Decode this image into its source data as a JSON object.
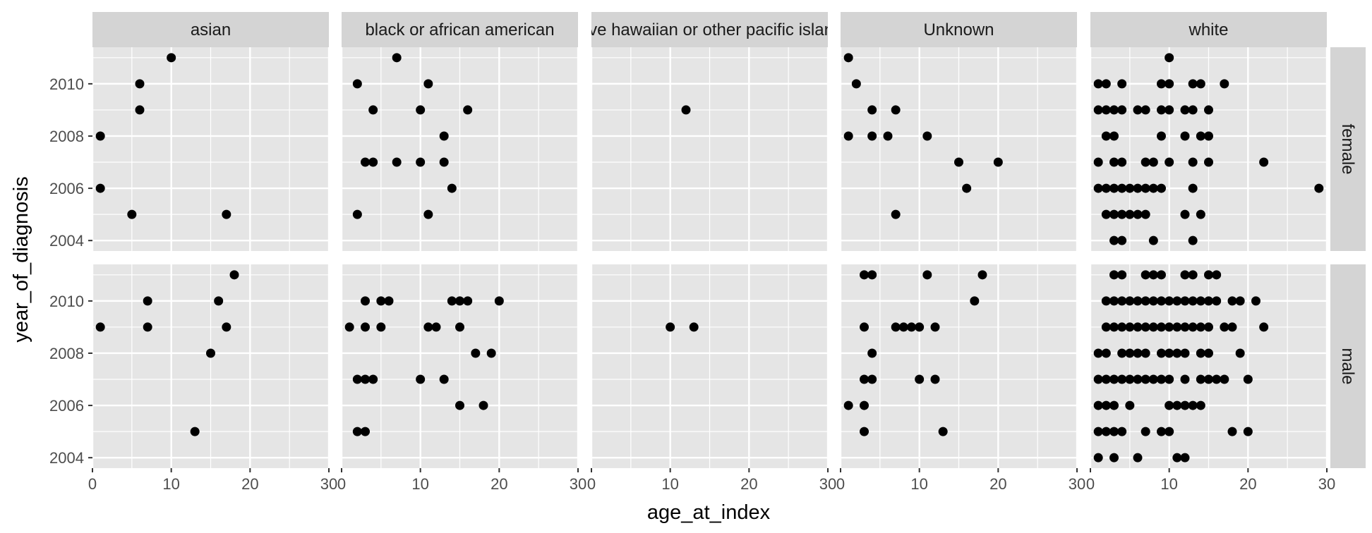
{
  "chart_data": {
    "type": "scatter",
    "xlabel": "age_at_index",
    "ylabel": "year_of_diagnosis",
    "xlim": [
      0,
      30
    ],
    "ylim": [
      2003.6,
      2011.4
    ],
    "x_ticks": [
      0,
      10,
      20,
      30
    ],
    "y_ticks": [
      2004,
      2006,
      2008,
      2010
    ],
    "grid": true,
    "legend": "none",
    "columns": [
      "asian",
      "black or african american",
      "native hawaiian or other pacific islander",
      "Unknown",
      "white"
    ],
    "rows": [
      "female",
      "male"
    ],
    "colors": {
      "panel_bg": "#e5e5e5",
      "strip_bg": "#d4d4d4",
      "grid": "#ffffff",
      "point": "#000000",
      "tick_text": "#4d4d4d"
    },
    "panels": [
      {
        "column": "asian",
        "row": "female",
        "points": [
          [
            1,
            2008
          ],
          [
            1,
            2006
          ],
          [
            5,
            2005
          ],
          [
            6,
            2010
          ],
          [
            6,
            2009
          ],
          [
            10,
            2011
          ],
          [
            17,
            2005
          ]
        ]
      },
      {
        "column": "black or african american",
        "row": "female",
        "points": [
          [
            2,
            2010
          ],
          [
            2,
            2005
          ],
          [
            3,
            2007
          ],
          [
            4,
            2007
          ],
          [
            4,
            2009
          ],
          [
            7,
            2011
          ],
          [
            7,
            2007
          ],
          [
            10,
            2009
          ],
          [
            10,
            2007
          ],
          [
            11,
            2010
          ],
          [
            11,
            2005
          ],
          [
            13,
            2008
          ],
          [
            13,
            2007
          ],
          [
            14,
            2006
          ],
          [
            16,
            2009
          ]
        ]
      },
      {
        "column": "native hawaiian or other pacific islander",
        "row": "female",
        "points": [
          [
            12,
            2009
          ]
        ]
      },
      {
        "column": "Unknown",
        "row": "female",
        "points": [
          [
            1,
            2011
          ],
          [
            1,
            2008
          ],
          [
            2,
            2010
          ],
          [
            4,
            2009
          ],
          [
            4,
            2008
          ],
          [
            6,
            2008
          ],
          [
            7,
            2009
          ],
          [
            7,
            2005
          ],
          [
            11,
            2008
          ],
          [
            15,
            2007
          ],
          [
            16,
            2006
          ],
          [
            20,
            2007
          ]
        ]
      },
      {
        "column": "white",
        "row": "female",
        "points": [
          [
            1,
            2010
          ],
          [
            2,
            2010
          ],
          [
            4,
            2010
          ],
          [
            9,
            2010
          ],
          [
            10,
            2010
          ],
          [
            13,
            2010
          ],
          [
            14,
            2010
          ],
          [
            17,
            2010
          ],
          [
            10,
            2011
          ],
          [
            1,
            2009
          ],
          [
            2,
            2009
          ],
          [
            3,
            2009
          ],
          [
            4,
            2009
          ],
          [
            6,
            2009
          ],
          [
            7,
            2009
          ],
          [
            9,
            2009
          ],
          [
            10,
            2009
          ],
          [
            12,
            2009
          ],
          [
            13,
            2009
          ],
          [
            15,
            2009
          ],
          [
            2,
            2008
          ],
          [
            3,
            2008
          ],
          [
            9,
            2008
          ],
          [
            12,
            2008
          ],
          [
            14,
            2008
          ],
          [
            15,
            2008
          ],
          [
            1,
            2007
          ],
          [
            3,
            2007
          ],
          [
            4,
            2007
          ],
          [
            7,
            2007
          ],
          [
            8,
            2007
          ],
          [
            10,
            2007
          ],
          [
            13,
            2007
          ],
          [
            15,
            2007
          ],
          [
            22,
            2007
          ],
          [
            1,
            2006
          ],
          [
            2,
            2006
          ],
          [
            3,
            2006
          ],
          [
            4,
            2006
          ],
          [
            5,
            2006
          ],
          [
            6,
            2006
          ],
          [
            7,
            2006
          ],
          [
            8,
            2006
          ],
          [
            9,
            2006
          ],
          [
            13,
            2006
          ],
          [
            29,
            2006
          ],
          [
            2,
            2005
          ],
          [
            3,
            2005
          ],
          [
            4,
            2005
          ],
          [
            5,
            2005
          ],
          [
            6,
            2005
          ],
          [
            7,
            2005
          ],
          [
            12,
            2005
          ],
          [
            14,
            2005
          ],
          [
            3,
            2004
          ],
          [
            4,
            2004
          ],
          [
            8,
            2004
          ],
          [
            13,
            2004
          ]
        ]
      },
      {
        "column": "asian",
        "row": "male",
        "points": [
          [
            1,
            2009
          ],
          [
            7,
            2010
          ],
          [
            7,
            2009
          ],
          [
            13,
            2005
          ],
          [
            15,
            2008
          ],
          [
            16,
            2010
          ],
          [
            17,
            2009
          ],
          [
            18,
            2011
          ]
        ]
      },
      {
        "column": "black or african american",
        "row": "male",
        "points": [
          [
            1,
            2009
          ],
          [
            2,
            2007
          ],
          [
            2,
            2005
          ],
          [
            3,
            2010
          ],
          [
            3,
            2009
          ],
          [
            3,
            2007
          ],
          [
            3,
            2005
          ],
          [
            4,
            2007
          ],
          [
            5,
            2010
          ],
          [
            5,
            2009
          ],
          [
            6,
            2010
          ],
          [
            10,
            2007
          ],
          [
            11,
            2009
          ],
          [
            12,
            2009
          ],
          [
            13,
            2007
          ],
          [
            14,
            2010
          ],
          [
            15,
            2010
          ],
          [
            15,
            2009
          ],
          [
            15,
            2006
          ],
          [
            16,
            2010
          ],
          [
            17,
            2008
          ],
          [
            18,
            2006
          ],
          [
            19,
            2008
          ],
          [
            20,
            2010
          ]
        ]
      },
      {
        "column": "native hawaiian or other pacific islander",
        "row": "male",
        "points": [
          [
            10,
            2009
          ],
          [
            13,
            2009
          ]
        ]
      },
      {
        "column": "Unknown",
        "row": "male",
        "points": [
          [
            1,
            2006
          ],
          [
            3,
            2011
          ],
          [
            3,
            2009
          ],
          [
            3,
            2007
          ],
          [
            3,
            2006
          ],
          [
            3,
            2005
          ],
          [
            4,
            2011
          ],
          [
            4,
            2008
          ],
          [
            4,
            2007
          ],
          [
            7,
            2009
          ],
          [
            8,
            2009
          ],
          [
            9,
            2009
          ],
          [
            10,
            2009
          ],
          [
            10,
            2007
          ],
          [
            11,
            2011
          ],
          [
            12,
            2009
          ],
          [
            12,
            2007
          ],
          [
            13,
            2005
          ],
          [
            17,
            2010
          ],
          [
            18,
            2011
          ]
        ]
      },
      {
        "column": "white",
        "row": "male",
        "points": [
          [
            3,
            2011
          ],
          [
            4,
            2011
          ],
          [
            7,
            2011
          ],
          [
            8,
            2011
          ],
          [
            9,
            2011
          ],
          [
            12,
            2011
          ],
          [
            13,
            2011
          ],
          [
            15,
            2011
          ],
          [
            16,
            2011
          ],
          [
            2,
            2010
          ],
          [
            3,
            2010
          ],
          [
            4,
            2010
          ],
          [
            5,
            2010
          ],
          [
            6,
            2010
          ],
          [
            7,
            2010
          ],
          [
            8,
            2010
          ],
          [
            9,
            2010
          ],
          [
            10,
            2010
          ],
          [
            11,
            2010
          ],
          [
            12,
            2010
          ],
          [
            13,
            2010
          ],
          [
            14,
            2010
          ],
          [
            15,
            2010
          ],
          [
            16,
            2010
          ],
          [
            18,
            2010
          ],
          [
            19,
            2010
          ],
          [
            21,
            2010
          ],
          [
            2,
            2009
          ],
          [
            3,
            2009
          ],
          [
            4,
            2009
          ],
          [
            5,
            2009
          ],
          [
            6,
            2009
          ],
          [
            7,
            2009
          ],
          [
            8,
            2009
          ],
          [
            9,
            2009
          ],
          [
            10,
            2009
          ],
          [
            11,
            2009
          ],
          [
            12,
            2009
          ],
          [
            13,
            2009
          ],
          [
            14,
            2009
          ],
          [
            15,
            2009
          ],
          [
            17,
            2009
          ],
          [
            18,
            2009
          ],
          [
            22,
            2009
          ],
          [
            1,
            2008
          ],
          [
            2,
            2008
          ],
          [
            4,
            2008
          ],
          [
            5,
            2008
          ],
          [
            6,
            2008
          ],
          [
            7,
            2008
          ],
          [
            9,
            2008
          ],
          [
            10,
            2008
          ],
          [
            11,
            2008
          ],
          [
            12,
            2008
          ],
          [
            14,
            2008
          ],
          [
            15,
            2008
          ],
          [
            19,
            2008
          ],
          [
            1,
            2007
          ],
          [
            2,
            2007
          ],
          [
            3,
            2007
          ],
          [
            4,
            2007
          ],
          [
            5,
            2007
          ],
          [
            6,
            2007
          ],
          [
            7,
            2007
          ],
          [
            8,
            2007
          ],
          [
            9,
            2007
          ],
          [
            10,
            2007
          ],
          [
            12,
            2007
          ],
          [
            14,
            2007
          ],
          [
            15,
            2007
          ],
          [
            16,
            2007
          ],
          [
            17,
            2007
          ],
          [
            20,
            2007
          ],
          [
            1,
            2006
          ],
          [
            2,
            2006
          ],
          [
            3,
            2006
          ],
          [
            5,
            2006
          ],
          [
            10,
            2006
          ],
          [
            11,
            2006
          ],
          [
            12,
            2006
          ],
          [
            13,
            2006
          ],
          [
            14,
            2006
          ],
          [
            1,
            2005
          ],
          [
            2,
            2005
          ],
          [
            3,
            2005
          ],
          [
            4,
            2005
          ],
          [
            7,
            2005
          ],
          [
            9,
            2005
          ],
          [
            10,
            2005
          ],
          [
            18,
            2005
          ],
          [
            20,
            2005
          ],
          [
            1,
            2004
          ],
          [
            3,
            2004
          ],
          [
            6,
            2004
          ],
          [
            11,
            2004
          ],
          [
            12,
            2004
          ]
        ]
      }
    ]
  }
}
